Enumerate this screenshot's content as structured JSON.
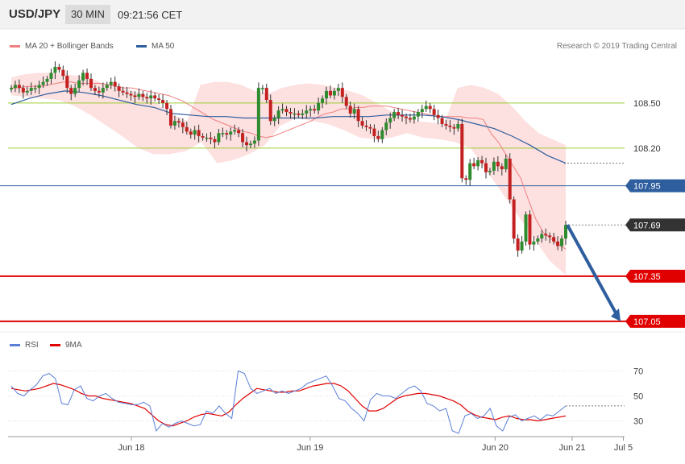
{
  "header": {
    "symbol": "USD/JPY",
    "timeframe": "30 MIN",
    "time": "09:21:56 CET"
  },
  "legend": {
    "ma20": {
      "label": "MA 20 + Bollinger Bands",
      "color": "#f08080"
    },
    "ma50": {
      "label": "MA 50",
      "color": "#2e5e9e"
    },
    "rsi": {
      "label": "RSI",
      "color": "#5b7fd6"
    },
    "ma9": {
      "label": "9MA",
      "color": "#e00000"
    }
  },
  "copyright": "Research © 2019 Trading Central",
  "colors": {
    "up": "#2e8b2e",
    "down": "#c42020",
    "resistance": "#9acd32",
    "support": "#e00000",
    "pivot": "#2e5e9e",
    "arrow": "#2e5e9e"
  },
  "chart_data": [
    {
      "type": "candlestick",
      "ylim": [
        106.98,
        108.82
      ],
      "levels": [
        {
          "name": "",
          "value": 108.5,
          "label": "108.50",
          "kind": "resistance"
        },
        {
          "name": "",
          "value": 108.2,
          "label": "108.20",
          "kind": "resistance"
        },
        {
          "name": "",
          "value": 107.95,
          "label": "107.95",
          "kind": "pivot"
        },
        {
          "name": "",
          "value": 107.69,
          "label": "107.69",
          "kind": "current"
        },
        {
          "name": "",
          "value": 107.35,
          "label": "107.35",
          "kind": "support"
        },
        {
          "name": "",
          "value": 107.05,
          "label": "107.05",
          "kind": "support"
        }
      ],
      "close_series": [
        108.6,
        108.62,
        108.6,
        108.57,
        108.58,
        108.6,
        108.6,
        108.62,
        108.64,
        108.66,
        108.7,
        108.74,
        108.72,
        108.68,
        108.6,
        108.56,
        108.6,
        108.65,
        108.7,
        108.66,
        108.6,
        108.58,
        108.57,
        108.6,
        108.62,
        108.64,
        108.61,
        108.58,
        108.57,
        108.56,
        108.55,
        108.54,
        108.56,
        108.54,
        108.53,
        108.55,
        108.53,
        108.52,
        108.5,
        108.46,
        108.35,
        108.38,
        108.37,
        108.34,
        108.31,
        108.29,
        108.32,
        108.28,
        108.27,
        108.27,
        108.26,
        108.24,
        108.3,
        108.3,
        108.29,
        108.31,
        108.32,
        108.3,
        108.24,
        108.22,
        108.23,
        108.25,
        108.6,
        108.6,
        108.52,
        108.38,
        108.4,
        108.45,
        108.46,
        108.44,
        108.43,
        108.43,
        108.42,
        108.43,
        108.45,
        108.46,
        108.45,
        108.5,
        108.53,
        108.58,
        108.55,
        108.58,
        108.6,
        108.54,
        108.48,
        108.43,
        108.46,
        108.38,
        108.35,
        108.34,
        108.33,
        108.28,
        108.26,
        108.32,
        108.37,
        108.4,
        108.44,
        108.42,
        108.41,
        108.4,
        108.39,
        108.41,
        108.44,
        108.46,
        108.48,
        108.46,
        108.42,
        108.4,
        108.36,
        108.35,
        108.34,
        108.33,
        108.36,
        108.0,
        107.99,
        108.1,
        108.08,
        108.12,
        108.1,
        108.04,
        108.05,
        108.11,
        108.08,
        108.06,
        108.13,
        107.86,
        107.6,
        107.52,
        107.58,
        107.76,
        107.56,
        107.58,
        107.6,
        107.63,
        107.62,
        107.61,
        107.58,
        107.55,
        107.6,
        107.69
      ],
      "ma20_series": [
        108.6,
        108.6,
        108.61,
        108.61,
        108.61,
        108.62,
        108.63,
        108.64,
        108.64,
        108.63,
        108.63,
        108.63,
        108.63,
        108.62,
        108.61,
        108.6,
        108.6,
        108.59,
        108.58,
        108.57,
        108.56,
        108.55,
        108.53,
        108.51,
        108.48,
        108.45,
        108.42,
        108.39,
        108.37,
        108.35,
        108.33,
        108.31,
        108.3,
        108.28,
        108.27,
        108.28,
        108.3,
        108.32,
        108.34,
        108.36,
        108.38,
        108.41,
        108.43,
        108.44,
        108.46,
        108.46,
        108.47,
        108.47,
        108.48,
        108.48,
        108.48,
        108.47,
        108.46,
        108.45,
        108.44,
        108.43,
        108.42,
        108.41,
        108.41,
        108.41,
        108.41,
        108.4,
        108.4,
        108.39,
        108.3,
        108.24,
        108.16,
        108.08,
        108.0,
        107.86,
        107.73,
        107.64,
        107.6,
        107.56,
        107.53
      ],
      "ma50_series": [
        108.49,
        108.53,
        108.56,
        108.58,
        108.57,
        108.55,
        108.52,
        108.49,
        108.47,
        108.43,
        108.42,
        108.41,
        108.41,
        108.4,
        108.4,
        108.4,
        108.4,
        108.4,
        108.41,
        108.41,
        108.41,
        108.42,
        108.42,
        108.42,
        108.41,
        108.39,
        108.36,
        108.33,
        108.28,
        108.22,
        108.15,
        108.1
      ],
      "upper_band": [
        108.67,
        108.69,
        108.7,
        108.7,
        108.69,
        108.68,
        108.66,
        108.62,
        108.6,
        108.58,
        108.55,
        108.48,
        108.42,
        108.38,
        108.62,
        108.64,
        108.64,
        108.62,
        108.58,
        108.56,
        108.6,
        108.62,
        108.63,
        108.62,
        108.6,
        108.58,
        108.55,
        108.5,
        108.45,
        108.42,
        108.38,
        108.37,
        108.36,
        108.6,
        108.62,
        108.6,
        108.56,
        108.48,
        108.38,
        108.3,
        108.26,
        108.22
      ],
      "lower_band": [
        108.55,
        108.54,
        108.53,
        108.52,
        108.48,
        108.42,
        108.35,
        108.28,
        108.2,
        108.16,
        108.16,
        108.18,
        108.24,
        108.1,
        108.12,
        108.16,
        108.22,
        108.35,
        108.4,
        108.38,
        108.36,
        108.32,
        108.27,
        108.26,
        108.27,
        108.3,
        108.27,
        108.26,
        108.24,
        108.2,
        108.05,
        107.9,
        107.75,
        107.6,
        107.45,
        107.36
      ],
      "projection": {
        "from": 107.69,
        "to": 107.05,
        "direction": "down"
      }
    },
    {
      "type": "line",
      "ylim": [
        20,
        80
      ],
      "ticks": [
        {
          "value": 70,
          "label": "70"
        },
        {
          "value": 50,
          "label": "50"
        },
        {
          "value": 30,
          "label": "30"
        }
      ],
      "x_labels": [
        {
          "label": "Jun 18",
          "pos": 0.2
        },
        {
          "label": "Jun 19",
          "pos": 0.49
        },
        {
          "label": "Jun 20",
          "pos": 0.79
        },
        {
          "label": "Jun 21",
          "pos": 0.915
        },
        {
          "label": "Jul 5",
          "pos": 0.998
        }
      ],
      "series": [
        {
          "name": "RSI",
          "values": [
            58,
            52,
            50,
            55,
            59,
            66,
            68,
            64,
            44,
            43,
            55,
            58,
            48,
            46,
            50,
            52,
            48,
            45,
            44,
            43,
            43,
            45,
            42,
            22,
            28,
            25,
            28,
            30,
            28,
            26,
            27,
            38,
            36,
            42,
            36,
            32,
            70,
            68,
            56,
            52,
            54,
            56,
            52,
            54,
            52,
            54,
            56,
            60,
            62,
            64,
            66,
            58,
            48,
            46,
            40,
            36,
            30,
            47,
            52,
            50,
            50,
            48,
            52,
            56,
            58,
            54,
            44,
            42,
            38,
            40,
            22,
            20,
            34,
            36,
            32,
            34,
            40,
            26,
            22,
            33,
            35,
            30,
            32,
            34,
            31,
            35,
            34,
            38,
            42
          ]
        },
        {
          "name": "9MA",
          "values": [
            56,
            55,
            54,
            55,
            56,
            58,
            60,
            59,
            57,
            55,
            52,
            50,
            50,
            48,
            47,
            46,
            45,
            44,
            42,
            40,
            35,
            30,
            27,
            26,
            28,
            30,
            33,
            35,
            36,
            35,
            34,
            37,
            43,
            48,
            52,
            56,
            55,
            54,
            53,
            53,
            54,
            54,
            56,
            58,
            59,
            60,
            60,
            58,
            54,
            48,
            42,
            38,
            38,
            40,
            44,
            48,
            50,
            51,
            52,
            52,
            51,
            50,
            48,
            46,
            43,
            38,
            35,
            33,
            32,
            31,
            33,
            34,
            32,
            31,
            31,
            30,
            31,
            32,
            33,
            34
          ]
        }
      ],
      "rsi_last": 42
    }
  ]
}
